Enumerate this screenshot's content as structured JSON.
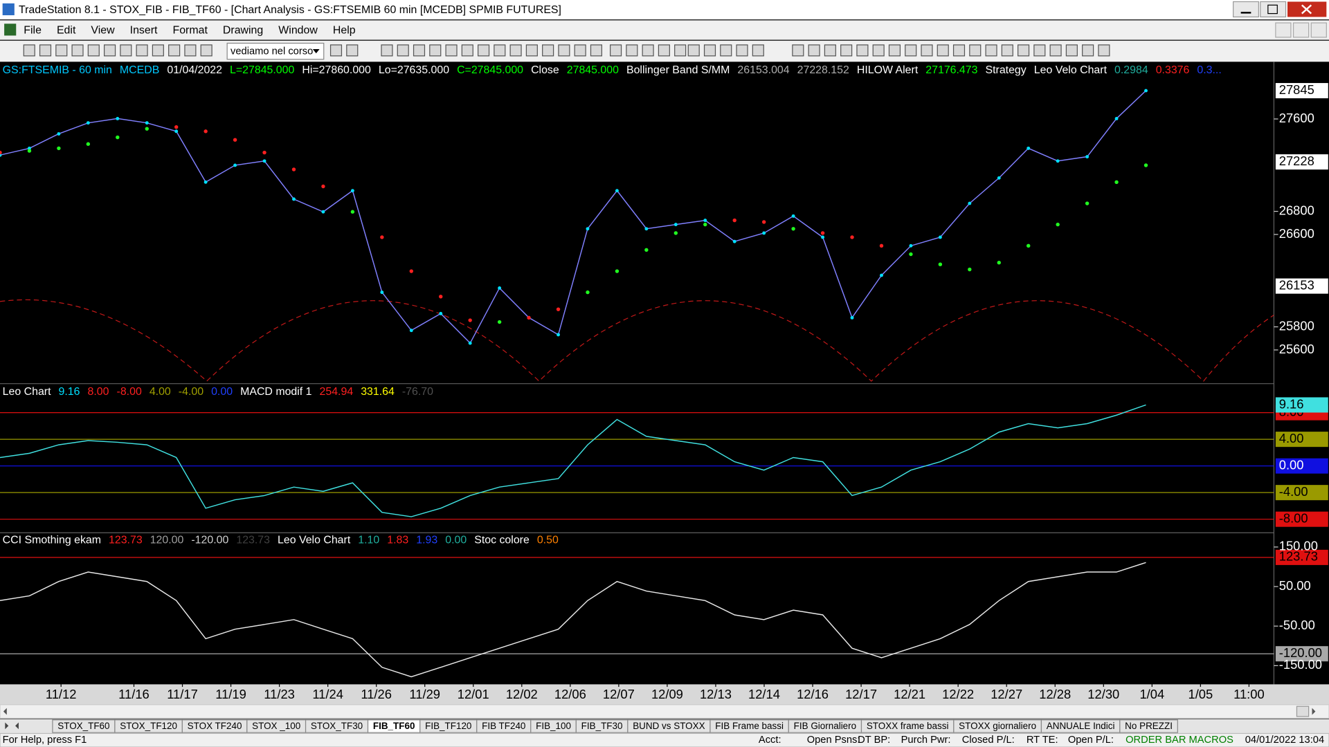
{
  "window": {
    "title": "TradeStation 8.1 - STOX_FIB - FIB_TF60 - [Chart Analysis - GS:FTSEMIB  60 min  [MCEDB] SPMIB FUTURES]",
    "menu": [
      "File",
      "Edit",
      "View",
      "Insert",
      "Format",
      "Drawing",
      "Window",
      "Help"
    ],
    "toolbar_combo": "vediamo nel corso"
  },
  "panes": [
    {
      "header": [
        {
          "text": "GS:FTSEMIB - 60 min",
          "color": "#00c8ff"
        },
        {
          "text": "MCEDB",
          "color": "#00c8ff"
        },
        {
          "text": "01/04/2022",
          "color": "#ffffff"
        },
        {
          "text": "L=27845.000",
          "color": "#00ff00"
        },
        {
          "text": "Hi=27860.000",
          "color": "#ffffff"
        },
        {
          "text": "Lo=27635.000",
          "color": "#ffffff"
        },
        {
          "text": "C=27845.000",
          "color": "#00ff00"
        },
        {
          "text": "Close",
          "color": "#ffffff"
        },
        {
          "text": "27845.000",
          "color": "#00ff00"
        },
        {
          "text": "Bollinger Band S/MM",
          "color": "#ffffff"
        },
        {
          "text": "26153.004",
          "color": "#b0b0b0"
        },
        {
          "text": "27228.152",
          "color": "#b0b0b0"
        },
        {
          "text": "HILOW Alert",
          "color": "#ffffff"
        },
        {
          "text": "27176.473",
          "color": "#00ff00"
        },
        {
          "text": "Strategy",
          "color": "#ffffff"
        },
        {
          "text": "Leo Velo Chart",
          "color": "#ffffff"
        },
        {
          "text": "0.2984",
          "color": "#20b0a0"
        },
        {
          "text": "0.3376",
          "color": "#ff2020"
        },
        {
          "text": "0.3...",
          "color": "#2040ff"
        }
      ],
      "ylim": [
        25330,
        28080
      ],
      "yticks": [
        27600,
        26800,
        26600,
        25800,
        25600
      ],
      "series": [
        {
          "color": "#00e0ff",
          "line": "#8080ff",
          "style": "price",
          "last_box": true,
          "values": [
            27287,
            27346,
            27471,
            27566,
            27603,
            27566,
            27493,
            27053,
            27199,
            27236,
            26906,
            26796,
            26979,
            26099,
            25769,
            25915,
            25659,
            26136,
            25879,
            25732,
            26649,
            26979,
            26649,
            26686,
            26722,
            26539,
            26612,
            26759,
            26576,
            25879,
            26246,
            26502,
            26576,
            26869,
            27089,
            27346,
            27236,
            27273,
            27603,
            27845
          ]
        },
        {
          "color": "#ff2020",
          "color_up": "#20ff20",
          "style": "stop",
          "values": [
            27309,
            27324,
            27346,
            27383,
            27441,
            27515,
            27530,
            27493,
            27419,
            27309,
            27163,
            27016,
            26796,
            26576,
            26282,
            26062,
            25857,
            25842,
            25879,
            25952,
            26099,
            26282,
            26466,
            26612,
            26686,
            26722,
            26708,
            26649,
            26612,
            26576,
            26502,
            26429,
            26341,
            26297,
            26356,
            26502,
            26686,
            26869,
            27053,
            27199
          ]
        }
      ],
      "markers": [
        {
          "value": 27228,
          "color": "#ffffff"
        },
        {
          "value": 26153,
          "color": "#ffffff"
        }
      ]
    },
    {
      "header": [
        {
          "text": "Leo Chart",
          "color": "#ffffff"
        },
        {
          "text": "9.16",
          "color": "#00e0ff"
        },
        {
          "text": "8.00",
          "color": "#ff2020"
        },
        {
          "text": "-8.00",
          "color": "#ff2020"
        },
        {
          "text": "4.00",
          "color": "#a0a000"
        },
        {
          "text": "-4.00",
          "color": "#a0a000"
        },
        {
          "text": "0.00",
          "color": "#2040ff"
        },
        {
          "text": "MACD modif 1",
          "color": "#ffffff"
        },
        {
          "text": "254.94",
          "color": "#ff2020"
        },
        {
          "text": "331.64",
          "color": "#ffff00"
        },
        {
          "text": "-76.70",
          "color": "#505050"
        }
      ],
      "ylim": [
        -9.9,
        12.1
      ],
      "levels": [
        {
          "value": 8,
          "label": "8.00",
          "color": "#e01010"
        },
        {
          "value": 4,
          "label": "4.00",
          "color": "#9a9a00"
        },
        {
          "value": 0,
          "label": "0.00",
          "color": "#1010e0"
        },
        {
          "value": -4,
          "label": "-4.00",
          "color": "#9a9a00"
        },
        {
          "value": -8,
          "label": "-8.00",
          "color": "#e01010"
        }
      ],
      "series": [
        {
          "color": "#40e0e0",
          "style": "line",
          "last_box": true,
          "values": [
            1.27,
            1.9,
            3.17,
            3.81,
            3.56,
            3.17,
            1.27,
            -6.35,
            -5.08,
            -4.44,
            -3.17,
            -3.81,
            -2.54,
            -6.98,
            -7.62,
            -6.35,
            -4.44,
            -3.17,
            -2.54,
            -1.9,
            3.17,
            6.98,
            4.44,
            3.81,
            3.17,
            0.63,
            -0.63,
            1.27,
            0.63,
            -4.44,
            -3.17,
            -0.63,
            0.63,
            2.54,
            5.08,
            6.35,
            5.71,
            6.35,
            7.62,
            9.16
          ]
        }
      ]
    },
    {
      "header": [
        {
          "text": "CCI Smothing ekam",
          "color": "#ffffff"
        },
        {
          "text": "123.73",
          "color": "#ff2020"
        },
        {
          "text": "120.00",
          "color": "#a0a0a0"
        },
        {
          "text": "-120.00",
          "color": "#d0d0d0"
        },
        {
          "text": "123.73",
          "color": "#404040"
        },
        {
          "text": "Leo Velo Chart",
          "color": "#ffffff"
        },
        {
          "text": "1.10",
          "color": "#20b0a0"
        },
        {
          "text": "1.83",
          "color": "#ff2020"
        },
        {
          "text": "1.93",
          "color": "#2040ff"
        },
        {
          "text": "0.00",
          "color": "#20b0a0"
        },
        {
          "text": "Stoc colore",
          "color": "#ffffff"
        },
        {
          "text": "0.50",
          "color": "#ff8000"
        }
      ],
      "ylim": [
        -193,
        184
      ],
      "yticks": [
        {
          "value": 150,
          "label": "150.00"
        },
        {
          "value": 50,
          "label": "50.00"
        },
        {
          "value": -50,
          "label": "-50.00"
        },
        {
          "value": -150,
          "label": "-150.00"
        }
      ],
      "levels": [
        {
          "value": 123.73,
          "color": "#e01010"
        },
        {
          "value": -120,
          "label": "-120.00",
          "color": "#a8a8a8"
        }
      ],
      "series": [
        {
          "color": "#e8e8e8",
          "style": "line",
          "values": [
            14.5,
            26.5,
            62.7,
            86.7,
            74.7,
            62.7,
            14.5,
            -81.9,
            -57.8,
            -45.8,
            -33.7,
            -57.8,
            -81.9,
            -154.2,
            -178.3,
            -154.2,
            -130.1,
            -106,
            -81.9,
            -57.8,
            14.5,
            62.7,
            38.6,
            26.5,
            14.5,
            -21.7,
            -33.7,
            -9.6,
            -21.7,
            -106,
            -130.1,
            -106,
            -81.9,
            -45.8,
            14.5,
            62.7,
            74.7,
            86.7,
            86.7,
            110.8
          ]
        }
      ]
    }
  ],
  "x_labels": [
    "11/12",
    "11/16",
    "11/17",
    "11/19",
    "11/23",
    "11/24",
    "11/26",
    "11/29",
    "12/01",
    "12/02",
    "12/06",
    "12/07",
    "12/09",
    "12/13",
    "12/14",
    "12/16",
    "12/17",
    "12/21",
    "12/22",
    "12/27",
    "12/28",
    "12/30",
    "1/04",
    "1/05",
    "11:00"
  ],
  "tabs": [
    "STOX_TF60",
    "STOX_TF120",
    "STOX TF240",
    "STOX _100",
    "STOX_TF30",
    "FIB_TF60",
    "FIB_TF120",
    "FIB TF240",
    "FIB_100",
    "FIB_TF30",
    "BUND vs STOXX",
    "FIB Frame bassi",
    "FIB Giornaliero",
    "STOXX frame bassi",
    "STOXX giornaliero",
    "ANNUALE Indici",
    "No PREZZI"
  ],
  "active_tab": 5,
  "status": [
    {
      "text": "For Help, press F1",
      "color": "#000000"
    },
    {
      "text": "Acct:",
      "color": "#000000"
    },
    {
      "text": "Open Psns:",
      "color": "#000000"
    },
    {
      "text": "DT BP:",
      "color": "#000000"
    },
    {
      "text": "Purch Pwr:",
      "color": "#000000"
    },
    {
      "text": "Closed P/L:",
      "color": "#000000"
    },
    {
      "text": "RT TE:",
      "color": "#000000"
    },
    {
      "text": "Open P/L:",
      "color": "#000000"
    },
    {
      "text": "ORDER BAR MACROS",
      "color": "#008000"
    },
    {
      "text": "04/01/2022 13:04",
      "color": "#000000"
    }
  ]
}
